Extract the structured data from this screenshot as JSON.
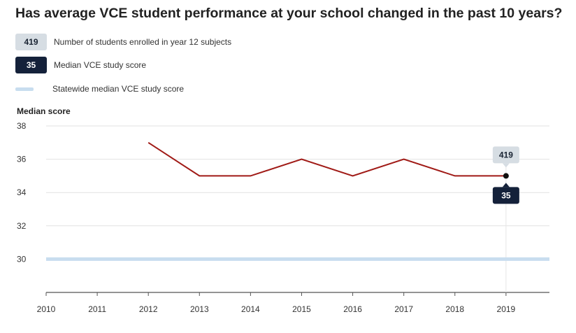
{
  "title": "Has average VCE student performance at your school changed in the past 10 years?",
  "legend": {
    "enrolled": {
      "badge": "419",
      "label": "Number of students enrolled in year 12 subjects"
    },
    "median": {
      "badge": "35",
      "label": "Median VCE study score"
    },
    "statewide": {
      "label": "Statewide median VCE study score"
    }
  },
  "colors": {
    "series_line": "#a01a16",
    "statewide_line": "#c8ddef",
    "badge_light": "#d6dde3",
    "badge_dark": "#14213a",
    "grid": "#e2e2e2"
  },
  "chart_data": {
    "type": "line",
    "ylabel": "Median score",
    "xlabel": "",
    "x_ticks": [
      "2010",
      "2011",
      "2012",
      "2013",
      "2014",
      "2015",
      "2016",
      "2017",
      "2018",
      "2019"
    ],
    "y_ticks": [
      "38",
      "36",
      "34",
      "32",
      "30"
    ],
    "ylim": [
      28,
      38
    ],
    "xlim": [
      2010,
      2019.85
    ],
    "grid": true,
    "series": [
      {
        "name": "Median VCE study score",
        "x": [
          2012,
          2013,
          2014,
          2015,
          2016,
          2017,
          2018,
          2019
        ],
        "values": [
          37,
          35,
          35,
          36,
          35,
          36,
          35,
          35
        ]
      }
    ],
    "statewide_median": 30,
    "highlight": {
      "year": 2019,
      "enrolled": "419",
      "median": "35"
    }
  }
}
